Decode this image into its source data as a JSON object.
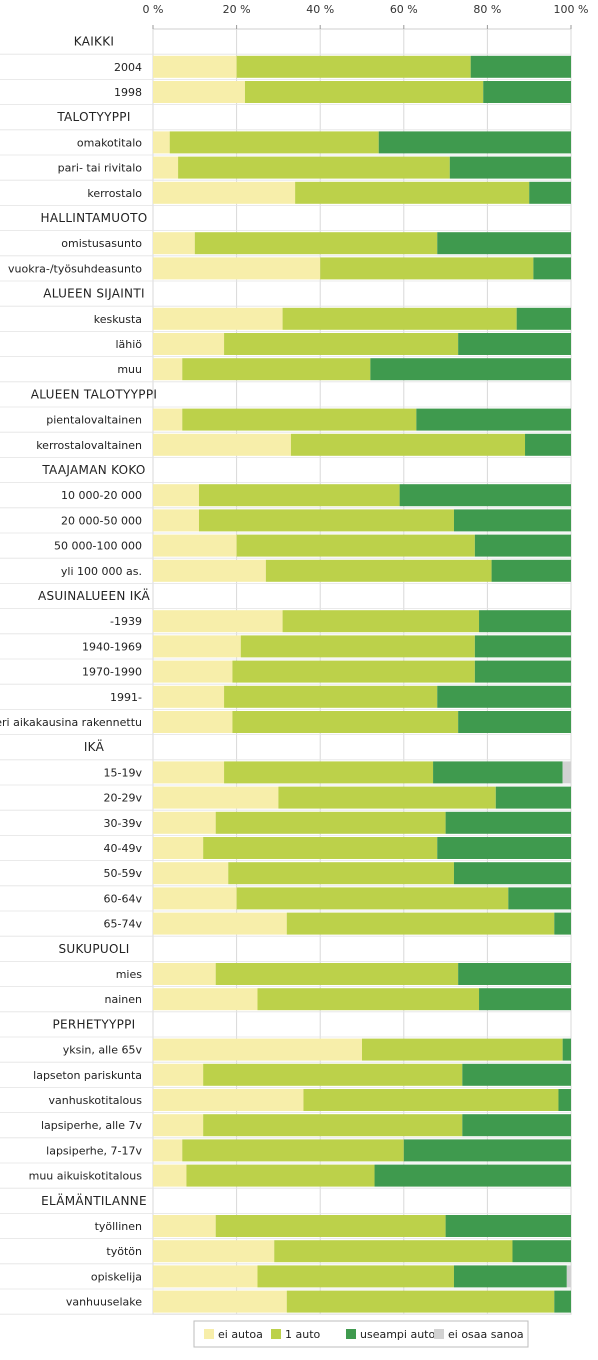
{
  "chart_data": {
    "type": "bar",
    "orientation": "horizontal",
    "stacked": true,
    "xlim": [
      0,
      100
    ],
    "x_ticks": [
      "0 %",
      "20 %",
      "40 %",
      "60 %",
      "80 %",
      "100 %"
    ],
    "grid": true,
    "legend_position": "bottom",
    "series": [
      {
        "name": "ei autoa",
        "color": "#f7eeaa"
      },
      {
        "name": "1 auto",
        "color": "#bcd14a"
      },
      {
        "name": "useampi auto",
        "color": "#3f9a4e"
      },
      {
        "name": "ei osaa sanoa",
        "color": "#d2d2d2"
      }
    ],
    "rows": [
      {
        "label": "KAIKKI",
        "header": true
      },
      {
        "label": "2004",
        "values": [
          20,
          56,
          24,
          0
        ]
      },
      {
        "label": "1998",
        "values": [
          22,
          57,
          21,
          0
        ]
      },
      {
        "label": "TALOTYYPPI",
        "header": true
      },
      {
        "label": "omakotitalo",
        "values": [
          4,
          50,
          46,
          0
        ]
      },
      {
        "label": "pari- tai rivitalo",
        "values": [
          6,
          65,
          29,
          0
        ]
      },
      {
        "label": "kerrostalo",
        "values": [
          34,
          56,
          10,
          0
        ]
      },
      {
        "label": "HALLINTAMUOTO",
        "header": true
      },
      {
        "label": "omistusasunto",
        "values": [
          10,
          58,
          32,
          0
        ]
      },
      {
        "label": "vuokra-/työsuhdeasunto",
        "values": [
          40,
          51,
          9,
          0
        ]
      },
      {
        "label": "ALUEEN SIJAINTI",
        "header": true
      },
      {
        "label": "keskusta",
        "values": [
          31,
          56,
          13,
          0
        ]
      },
      {
        "label": "lähiö",
        "values": [
          17,
          56,
          27,
          0
        ]
      },
      {
        "label": "muu",
        "values": [
          7,
          45,
          48,
          0
        ]
      },
      {
        "label": "ALUEEN TALOTYYPPI",
        "header": true
      },
      {
        "label": "pientalovaltainen",
        "values": [
          7,
          56,
          37,
          0
        ]
      },
      {
        "label": "kerrostalovaltainen",
        "values": [
          33,
          56,
          11,
          0
        ]
      },
      {
        "label": "TAAJAMAN KOKO",
        "header": true
      },
      {
        "label": "10 000-20 000",
        "values": [
          11,
          48,
          41,
          0
        ]
      },
      {
        "label": "20 000-50 000",
        "values": [
          11,
          61,
          28,
          0
        ]
      },
      {
        "label": "50 000-100 000",
        "values": [
          20,
          57,
          23,
          0
        ]
      },
      {
        "label": "yli 100 000 as.",
        "values": [
          27,
          54,
          19,
          0
        ]
      },
      {
        "label": "ASUINALUEEN IKÄ",
        "header": true
      },
      {
        "label": "-1939",
        "values": [
          31,
          47,
          22,
          0
        ]
      },
      {
        "label": "1940-1969",
        "values": [
          21,
          56,
          23,
          0
        ]
      },
      {
        "label": "1970-1990",
        "values": [
          19,
          58,
          23,
          0
        ]
      },
      {
        "label": "1991-",
        "values": [
          17,
          51,
          32,
          0
        ]
      },
      {
        "label": "eri aikakausina rakennettu",
        "values": [
          19,
          54,
          27,
          0
        ]
      },
      {
        "label": "IKÄ",
        "header": true
      },
      {
        "label": "15-19v",
        "values": [
          17,
          50,
          31,
          2
        ]
      },
      {
        "label": "20-29v",
        "values": [
          30,
          52,
          18,
          0
        ]
      },
      {
        "label": "30-39v",
        "values": [
          15,
          55,
          30,
          0
        ]
      },
      {
        "label": "40-49v",
        "values": [
          12,
          56,
          32,
          0
        ]
      },
      {
        "label": "50-59v",
        "values": [
          18,
          54,
          28,
          0
        ]
      },
      {
        "label": "60-64v",
        "values": [
          20,
          65,
          15,
          0
        ]
      },
      {
        "label": "65-74v",
        "values": [
          32,
          64,
          4,
          0
        ]
      },
      {
        "label": "SUKUPUOLI",
        "header": true
      },
      {
        "label": "mies",
        "values": [
          15,
          58,
          27,
          0
        ]
      },
      {
        "label": "nainen",
        "values": [
          25,
          53,
          22,
          0
        ]
      },
      {
        "label": "PERHETYYPPI",
        "header": true
      },
      {
        "label": "yksin, alle 65v",
        "values": [
          50,
          48,
          2,
          0
        ]
      },
      {
        "label": "lapseton pariskunta",
        "values": [
          12,
          62,
          26,
          0
        ]
      },
      {
        "label": "vanhuskotitalous",
        "values": [
          36,
          61,
          3,
          0
        ]
      },
      {
        "label": "lapsiperhe, alle 7v",
        "values": [
          12,
          62,
          26,
          0
        ]
      },
      {
        "label": "lapsiperhe, 7-17v",
        "values": [
          7,
          53,
          40,
          0
        ]
      },
      {
        "label": "muu aikuiskotitalous",
        "values": [
          8,
          45,
          47,
          0
        ]
      },
      {
        "label": "ELÄMÄNTILANNE",
        "header": true
      },
      {
        "label": "työllinen",
        "values": [
          15,
          55,
          30,
          0
        ]
      },
      {
        "label": "työtön",
        "values": [
          29,
          57,
          14,
          0
        ]
      },
      {
        "label": "opiskelija",
        "values": [
          25,
          47,
          27,
          1
        ]
      },
      {
        "label": "vanhuuselake",
        "values": [
          32,
          64,
          4,
          0
        ]
      }
    ]
  }
}
